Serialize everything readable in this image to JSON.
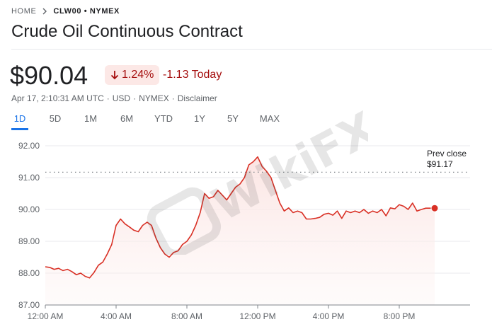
{
  "breadcrumb": {
    "home": "HOME",
    "current": "CLW00 • NYMEX"
  },
  "title": "Crude Oil Continuous Contract",
  "quote": {
    "price": "$90.04",
    "change_pct": "1.24%",
    "change_abs": "-1.13 Today",
    "direction": "down",
    "color_negative": "#a50e0e",
    "badge_bg": "#fce8e6"
  },
  "meta": {
    "timestamp": "Apr 17, 2:10:31 AM UTC",
    "currency": "USD",
    "exchange": "NYMEX",
    "disclaimer": "Disclaimer"
  },
  "range_tabs": {
    "selected": "1D",
    "items": [
      {
        "label": "1D"
      },
      {
        "label": "5D"
      },
      {
        "label": "1M"
      },
      {
        "label": "6M"
      },
      {
        "label": "YTD"
      },
      {
        "label": "1Y"
      },
      {
        "label": "5Y"
      },
      {
        "label": "MAX"
      }
    ]
  },
  "prev_close": {
    "label": "Prev close",
    "value_text": "$91.17",
    "value": 91.17
  },
  "chart_data": {
    "type": "line",
    "series": [
      {
        "x": [
          0,
          0.25,
          0.5,
          0.75,
          1,
          1.25,
          1.5,
          1.75,
          2,
          2.25,
          2.5,
          2.75,
          3,
          3.25,
          3.5,
          3.75,
          4,
          4.25,
          4.5,
          4.75,
          5,
          5.25,
          5.5,
          5.75,
          6,
          6.25,
          6.5,
          6.75,
          7,
          7.25,
          7.5,
          7.75,
          8,
          8.25,
          8.5,
          8.75,
          9,
          9.25,
          9.5,
          9.75,
          10,
          10.25,
          10.5,
          10.75,
          11,
          11.25,
          11.5,
          11.75,
          12,
          12.25,
          12.5,
          12.75,
          13,
          13.25,
          13.5,
          13.75,
          14,
          14.25,
          14.5,
          14.75,
          15,
          15.25,
          15.5,
          15.75,
          16,
          16.25,
          16.5,
          16.75,
          17,
          17.25,
          17.5,
          17.75,
          18,
          18.25,
          18.5,
          18.75,
          19,
          19.25,
          19.5,
          19.75,
          20,
          20.25,
          20.5,
          20.75,
          21,
          21.25,
          21.5,
          21.75,
          22
        ],
        "y": [
          88.2,
          88.18,
          88.12,
          88.15,
          88.08,
          88.12,
          88.05,
          87.95,
          88.0,
          87.9,
          87.85,
          88.02,
          88.25,
          88.35,
          88.6,
          88.9,
          89.5,
          89.7,
          89.55,
          89.45,
          89.35,
          89.3,
          89.5,
          89.6,
          89.5,
          89.1,
          88.8,
          88.6,
          88.5,
          88.65,
          88.7,
          88.9,
          89.0,
          89.2,
          89.5,
          89.9,
          90.5,
          90.35,
          90.4,
          90.6,
          90.45,
          90.3,
          90.5,
          90.7,
          90.8,
          91.0,
          91.4,
          91.5,
          91.65,
          91.35,
          91.2,
          91.0,
          90.6,
          90.2,
          89.95,
          90.05,
          89.9,
          89.95,
          89.9,
          89.7,
          89.7,
          89.72,
          89.75,
          89.85,
          89.88,
          89.82,
          89.95,
          89.72,
          89.95,
          89.9,
          89.95,
          89.9,
          90.0,
          89.88,
          89.95,
          89.9,
          90.0,
          89.8,
          90.05,
          90.02,
          90.15,
          90.1,
          90.0,
          90.2,
          89.95,
          90.0,
          90.04,
          90.04,
          90.04
        ],
        "color": "#d93025"
      }
    ],
    "x_range": [
      0,
      24
    ],
    "ylim": [
      87.0,
      92.0
    ],
    "x_tick_labels": [
      "12:00 AM",
      "4:00 AM",
      "8:00 AM",
      "12:00 PM",
      "4:00 PM",
      "8:00 PM"
    ],
    "x_tick_values": [
      0,
      4,
      8,
      12,
      16,
      20
    ],
    "y_ticks": [
      87.0,
      88.0,
      89.0,
      90.0,
      91.0,
      92.0
    ],
    "y_tick_labels": [
      "87.00",
      "88.00",
      "89.00",
      "90.00",
      "91.00",
      "92.00"
    ],
    "prev_close": 91.17,
    "grid": true,
    "watermark": "WikiFX"
  }
}
